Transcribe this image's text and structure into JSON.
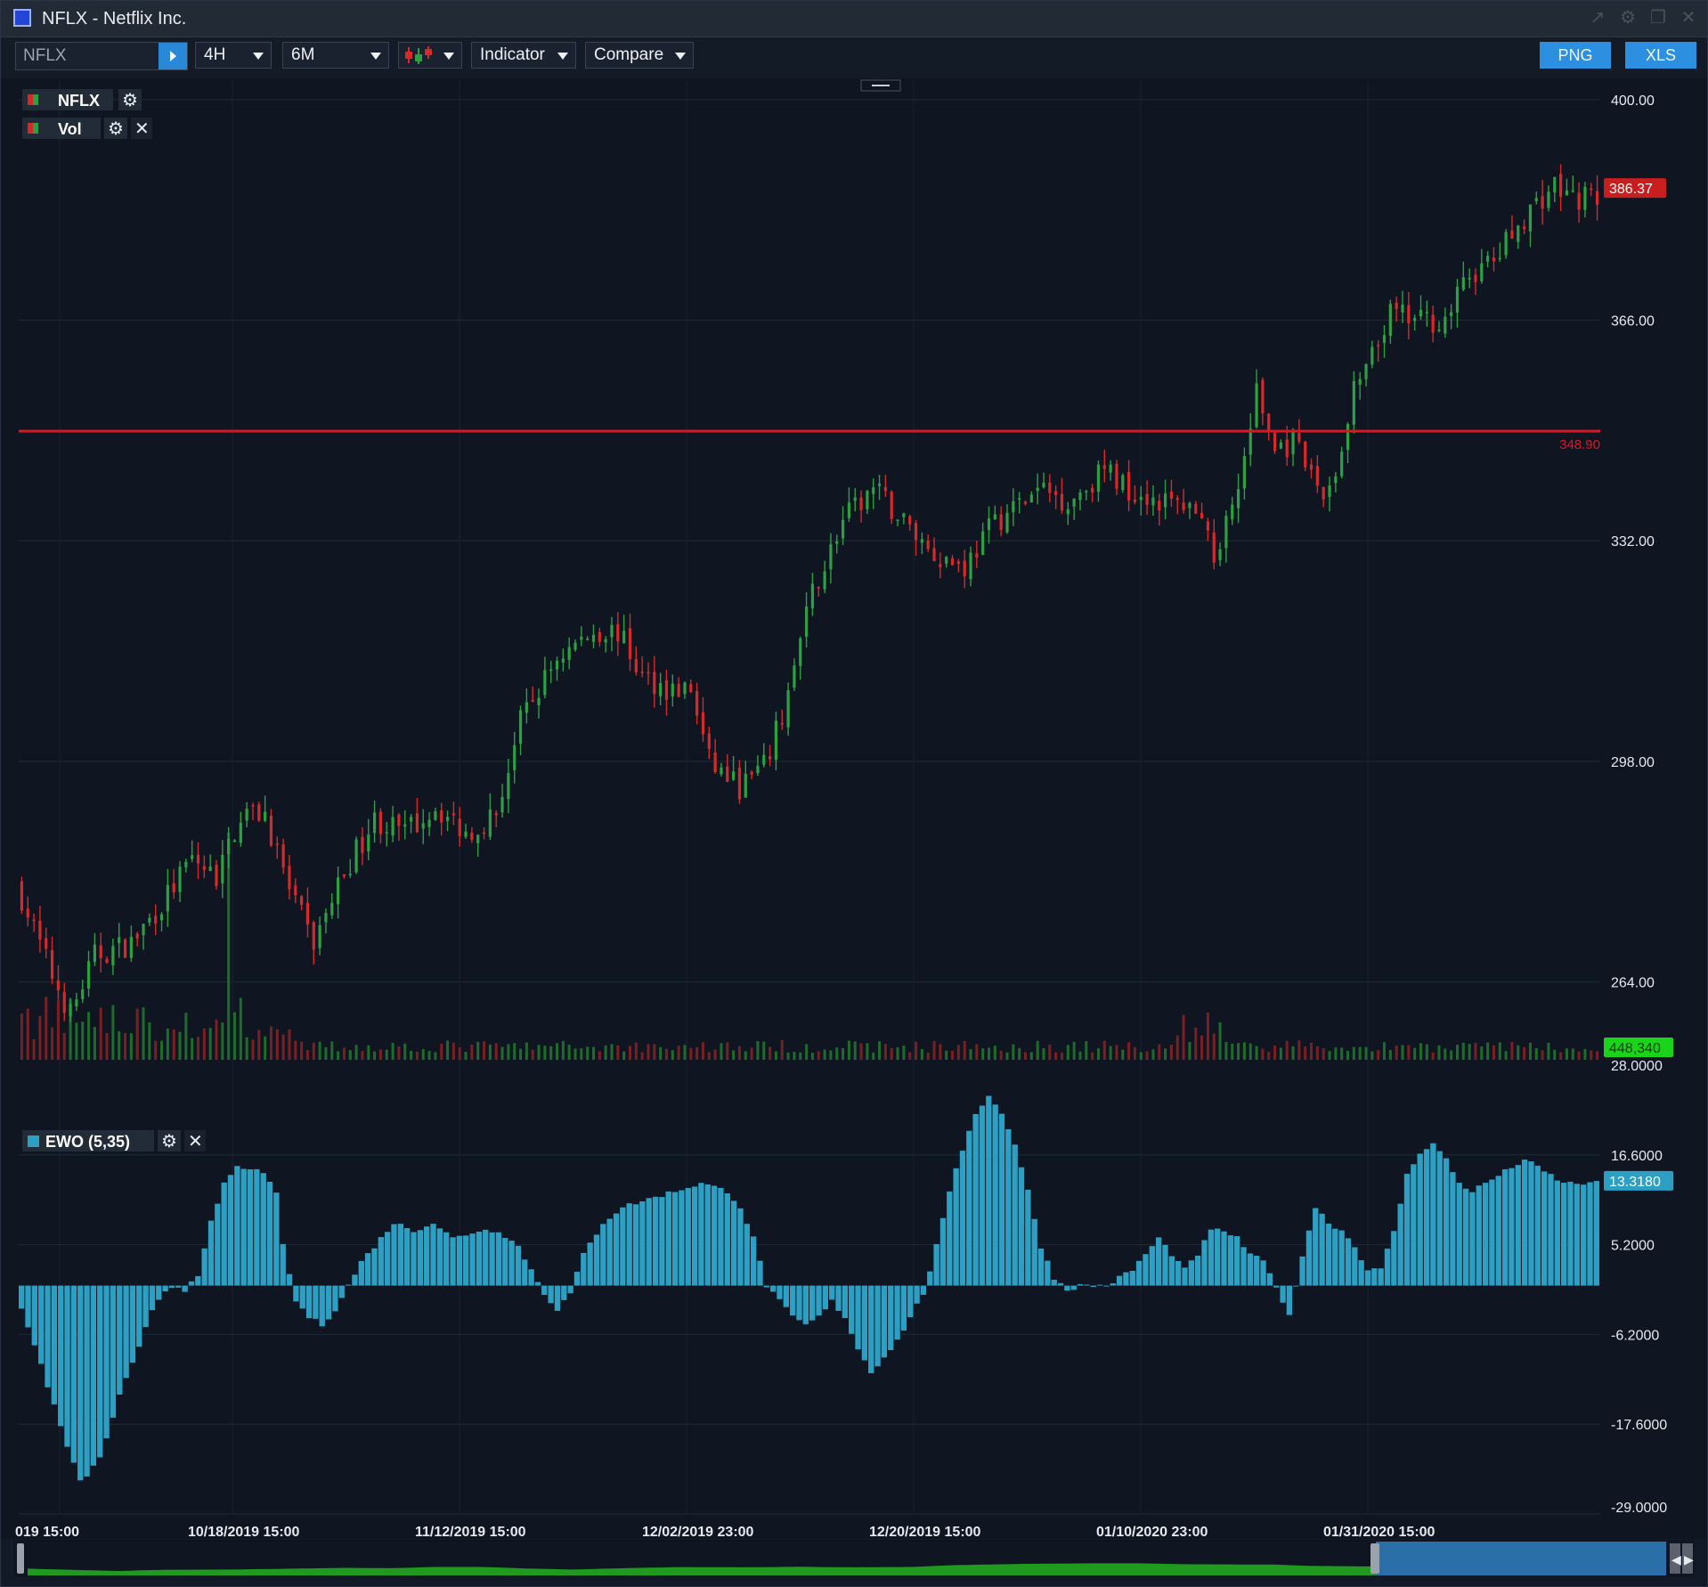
{
  "window": {
    "title": "NFLX - Netflix Inc."
  },
  "toolbar": {
    "symbol_value": "NFLX",
    "interval": "4H",
    "range": "6M",
    "indicator_label": "Indicator",
    "compare_label": "Compare",
    "png_label": "PNG",
    "xls_label": "XLS"
  },
  "legend": {
    "main_series": "NFLX",
    "volume_series": "Vol",
    "oscillator": "EWO (5,35)"
  },
  "colors": {
    "up": "#2ea043",
    "down": "#d62a2a",
    "hline": "#e0141e",
    "ewo": "#2d9fc2",
    "volume_badge": "#19d419",
    "ewo_badge": "#2d9fc2",
    "price_badge": "#c81e1e",
    "accent": "#2c8fe0"
  },
  "chart_data": [
    {
      "type": "candlestick",
      "symbol": "NFLX",
      "interval": "4H",
      "ylim": [
        252,
        403
      ],
      "y_ticks": [
        "400.00",
        "366.00",
        "332.00",
        "298.00",
        "264.00"
      ],
      "x_tick_labels": [
        "019 15:00",
        "10/18/2019 15:00",
        "11/12/2019 15:00",
        "12/02/2019 23:00",
        "12/20/2019 15:00",
        "01/10/2020 23:00",
        "01/31/2020 15:00"
      ],
      "last_price": "386.37",
      "horizontal_line": {
        "value": 348.9,
        "label": "348.90"
      },
      "grid": true,
      "anchors": [
        [
          0,
          277
        ],
        [
          5,
          265
        ],
        [
          8,
          259
        ],
        [
          12,
          268
        ],
        [
          18,
          270
        ],
        [
          23,
          276
        ],
        [
          28,
          283
        ],
        [
          32,
          280
        ],
        [
          36,
          290
        ],
        [
          40,
          290
        ],
        [
          44,
          278
        ],
        [
          48,
          270
        ],
        [
          53,
          281
        ],
        [
          58,
          289
        ],
        [
          63,
          287
        ],
        [
          68,
          291
        ],
        [
          73,
          287
        ],
        [
          78,
          290
        ],
        [
          82,
          304
        ],
        [
          88,
          314
        ],
        [
          94,
          318
        ],
        [
          98,
          318
        ],
        [
          102,
          311
        ],
        [
          107,
          309
        ],
        [
          110,
          309
        ],
        [
          113,
          298
        ],
        [
          118,
          294
        ],
        [
          122,
          297
        ],
        [
          125,
          305
        ],
        [
          130,
          324
        ],
        [
          135,
          335
        ],
        [
          140,
          340
        ],
        [
          145,
          335
        ],
        [
          150,
          330
        ],
        [
          155,
          328
        ],
        [
          160,
          335
        ],
        [
          163,
          337
        ],
        [
          168,
          340
        ],
        [
          172,
          338
        ],
        [
          178,
          343
        ],
        [
          182,
          340
        ],
        [
          188,
          338
        ],
        [
          192,
          337
        ],
        [
          196,
          330
        ],
        [
          200,
          340
        ],
        [
          203,
          355
        ],
        [
          206,
          346
        ],
        [
          209,
          347
        ],
        [
          212,
          342
        ],
        [
          214,
          339
        ],
        [
          217,
          345
        ],
        [
          219,
          355
        ],
        [
          222,
          360
        ],
        [
          225,
          367
        ],
        [
          229,
          366
        ],
        [
          234,
          366
        ],
        [
          238,
          373
        ],
        [
          242,
          375
        ],
        [
          247,
          382
        ],
        [
          252,
          387
        ],
        [
          254,
          385
        ]
      ]
    },
    {
      "type": "bar",
      "name": "Vol",
      "last_value": "448,340",
      "peak_bar_index": 34
    },
    {
      "type": "bar",
      "name": "EWO (5,35)",
      "ylim": [
        -29,
        28
      ],
      "y_ticks": [
        "28.0000",
        "16.6000",
        "5.2000",
        "-6.2000",
        "-17.6000",
        "-29.0000"
      ],
      "last_value": "13.3180",
      "anchors": [
        [
          0,
          -3
        ],
        [
          3,
          -10
        ],
        [
          6,
          -18
        ],
        [
          9,
          -25
        ],
        [
          12,
          -22
        ],
        [
          15,
          -14
        ],
        [
          18,
          -8
        ],
        [
          20,
          -3
        ],
        [
          22,
          -0.5
        ],
        [
          24,
          0
        ],
        [
          25,
          -0.5
        ],
        [
          27,
          1
        ],
        [
          29,
          8
        ],
        [
          31,
          13
        ],
        [
          33,
          15
        ],
        [
          35,
          15
        ],
        [
          37,
          14
        ],
        [
          39,
          12
        ],
        [
          40,
          5
        ],
        [
          42,
          -2
        ],
        [
          44,
          -4
        ],
        [
          46,
          -5
        ],
        [
          48,
          -3
        ],
        [
          50,
          0
        ],
        [
          52,
          3
        ],
        [
          55,
          6
        ],
        [
          57,
          8
        ],
        [
          60,
          7
        ],
        [
          63,
          8
        ],
        [
          66,
          6
        ],
        [
          70,
          7
        ],
        [
          73,
          7
        ],
        [
          76,
          5
        ],
        [
          78,
          2
        ],
        [
          80,
          -1
        ],
        [
          82,
          -3
        ],
        [
          84,
          -1
        ],
        [
          86,
          4
        ],
        [
          89,
          8
        ],
        [
          92,
          10
        ],
        [
          96,
          11
        ],
        [
          100,
          12
        ],
        [
          104,
          13
        ],
        [
          108,
          12
        ],
        [
          110,
          10
        ],
        [
          112,
          6
        ],
        [
          114,
          0
        ],
        [
          116,
          -2
        ],
        [
          118,
          -4
        ],
        [
          120,
          -5
        ],
        [
          122,
          -4
        ],
        [
          124,
          -2
        ],
        [
          126,
          -4
        ],
        [
          128,
          -8
        ],
        [
          130,
          -11
        ],
        [
          132,
          -9
        ],
        [
          134,
          -7
        ],
        [
          136,
          -4
        ],
        [
          138,
          -1
        ],
        [
          140,
          5
        ],
        [
          143,
          15
        ],
        [
          146,
          22
        ],
        [
          148,
          24
        ],
        [
          150,
          22
        ],
        [
          152,
          18
        ],
        [
          154,
          12
        ],
        [
          156,
          5
        ],
        [
          158,
          1
        ],
        [
          160,
          -0.5
        ],
        [
          162,
          0
        ],
        [
          166,
          0
        ],
        [
          170,
          2
        ],
        [
          172,
          4
        ],
        [
          174,
          6
        ],
        [
          176,
          4
        ],
        [
          178,
          2
        ],
        [
          180,
          4
        ],
        [
          182,
          7
        ],
        [
          184,
          7
        ],
        [
          186,
          6
        ],
        [
          188,
          4
        ],
        [
          190,
          3
        ],
        [
          192,
          0
        ],
        [
          194,
          -4
        ],
        [
          196,
          4
        ],
        [
          198,
          10
        ],
        [
          200,
          8
        ],
        [
          202,
          7
        ],
        [
          204,
          5
        ],
        [
          206,
          2
        ],
        [
          208,
          2
        ],
        [
          210,
          7
        ],
        [
          212,
          14
        ],
        [
          214,
          17
        ],
        [
          216,
          18
        ],
        [
          218,
          16
        ],
        [
          220,
          13
        ],
        [
          222,
          12
        ],
        [
          224,
          13
        ],
        [
          226,
          14
        ],
        [
          228,
          15
        ],
        [
          230,
          16
        ],
        [
          232,
          15
        ],
        [
          234,
          14
        ],
        [
          236,
          13
        ],
        [
          238,
          13
        ],
        [
          240,
          13
        ]
      ]
    }
  ]
}
